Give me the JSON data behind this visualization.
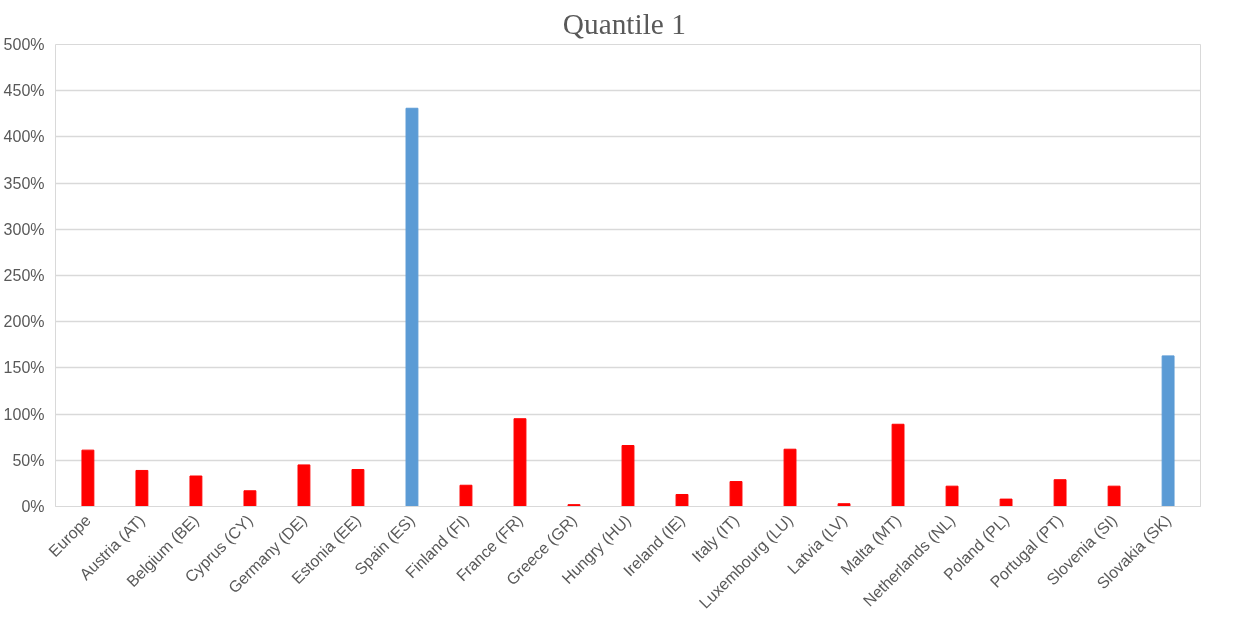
{
  "chart_data": {
    "type": "bar",
    "title": "Quantile  1",
    "categories": [
      "Europe",
      "Austria (AT)",
      "Belgium (BE)",
      "Cyprus (CY)",
      "Germany (DE)",
      "Estonia (EE)",
      "Spain (ES)",
      "Finland (FI)",
      "France (FR)",
      "Greece (GR)",
      "Hungry (HU)",
      "Ireland (IE)",
      "Italy (IT)",
      "Luxembourg (LU)",
      "Latvia (LV)",
      "Malta (MT)",
      "Netherlands (NL)",
      "Poland (PL)",
      "Portugal (PT)",
      "Slovenia (SI)",
      "Slovakia (SK)"
    ],
    "values": [
      61,
      39,
      33,
      17,
      45,
      40,
      431,
      23,
      95,
      2,
      66,
      13,
      27,
      62,
      3,
      89,
      22,
      8,
      29,
      22,
      163
    ],
    "colors": [
      "#ff0000",
      "#ff0000",
      "#ff0000",
      "#ff0000",
      "#ff0000",
      "#ff0000",
      "#5b9bd5",
      "#ff0000",
      "#ff0000",
      "#ff0000",
      "#ff0000",
      "#ff0000",
      "#ff0000",
      "#ff0000",
      "#ff0000",
      "#ff0000",
      "#ff0000",
      "#ff0000",
      "#ff0000",
      "#ff0000",
      "#5b9bd5"
    ],
    "ylim": [
      0,
      500
    ],
    "yticks": [
      {
        "value": 0,
        "label": "0%"
      },
      {
        "value": 50,
        "label": "50%"
      },
      {
        "value": 100,
        "label": "100%"
      },
      {
        "value": 150,
        "label": "150%"
      },
      {
        "value": 200,
        "label": "200%"
      },
      {
        "value": 250,
        "label": "250%"
      },
      {
        "value": 300,
        "label": "300%"
      },
      {
        "value": 350,
        "label": "350%"
      },
      {
        "value": 400,
        "label": "400%"
      },
      {
        "value": 450,
        "label": "450%"
      },
      {
        "value": 500,
        "label": "500%"
      }
    ],
    "grid": "y"
  }
}
